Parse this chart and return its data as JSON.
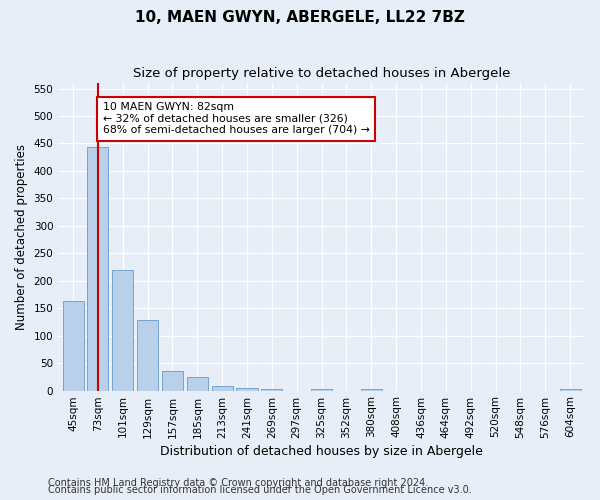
{
  "title": "10, MAEN GWYN, ABERGELE, LL22 7BZ",
  "subtitle": "Size of property relative to detached houses in Abergele",
  "xlabel": "Distribution of detached houses by size in Abergele",
  "ylabel": "Number of detached properties",
  "bar_labels": [
    "45sqm",
    "73sqm",
    "101sqm",
    "129sqm",
    "157sqm",
    "185sqm",
    "213sqm",
    "241sqm",
    "269sqm",
    "297sqm",
    "325sqm",
    "352sqm",
    "380sqm",
    "408sqm",
    "436sqm",
    "464sqm",
    "492sqm",
    "520sqm",
    "548sqm",
    "576sqm",
    "604sqm"
  ],
  "bar_values": [
    163,
    443,
    220,
    129,
    36,
    24,
    9,
    4,
    2,
    0,
    3,
    0,
    2,
    0,
    0,
    0,
    0,
    0,
    0,
    0,
    2
  ],
  "bar_color": "#b8d0ea",
  "bar_edgecolor": "#6699cc",
  "bar_width": 0.85,
  "ylim": [
    0,
    560
  ],
  "yticks": [
    0,
    50,
    100,
    150,
    200,
    250,
    300,
    350,
    400,
    450,
    500,
    550
  ],
  "property_bin_index": 1,
  "redline_color": "#cc0000",
  "annotation_text": "10 MAEN GWYN: 82sqm\n← 32% of detached houses are smaller (326)\n68% of semi-detached houses are larger (704) →",
  "annotation_box_color": "#ffffff",
  "annotation_box_edgecolor": "#cc0000",
  "footer_line1": "Contains HM Land Registry data © Crown copyright and database right 2024.",
  "footer_line2": "Contains public sector information licensed under the Open Government Licence v3.0.",
  "background_color": "#e8eef8",
  "grid_color": "#ffffff",
  "title_fontsize": 11,
  "subtitle_fontsize": 9.5,
  "axis_label_fontsize": 8.5,
  "tick_fontsize": 7.5,
  "footer_fontsize": 7
}
